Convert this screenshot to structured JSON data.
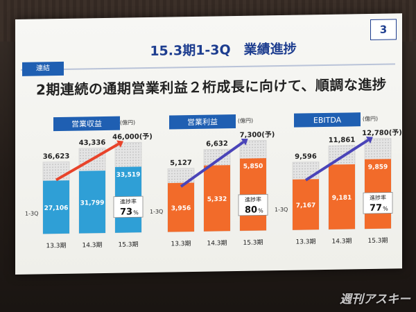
{
  "slide": {
    "page_number": "3",
    "badge": "連結",
    "title": "15.3期1-3Q　業績進捗",
    "subtitle": "2期連続の通期営業利益２桁成長に向けて、順調な進捗"
  },
  "watermark": "週刊アスキー",
  "colors": {
    "slide_bg": "#f4f4f0",
    "header_blue": "#1f5fb2",
    "title_navy": "#1d3d8f",
    "blue_bar": "#2f9fd6",
    "orange_bar": "#f26b2a",
    "forecast_fill": "#dcdcdc",
    "arrow_red": "#e8432a",
    "arrow_purple": "#4a44b8"
  },
  "chart_data": [
    {
      "type": "bar",
      "title": "営業収益",
      "unit": "(億円)",
      "bar_color": "#2f9fd6",
      "arrow_color": "#e8432a",
      "categories": [
        "13.3期",
        "14.3期",
        "15.3期"
      ],
      "row_label": "1-3Q",
      "series": [
        {
          "name": "1-3Q",
          "values": [
            27106,
            31799,
            33519
          ],
          "labels": [
            "27,106",
            "31,799",
            "33,519"
          ]
        },
        {
          "name": "通期",
          "values": [
            36623,
            43336,
            46000
          ],
          "labels": [
            "36,623",
            "43,336",
            "46,000"
          ]
        }
      ],
      "forecast_suffix": "(予)",
      "progress": {
        "label": "進捗率",
        "value": "73",
        "unit": "%"
      }
    },
    {
      "type": "bar",
      "title": "営業利益",
      "unit": "(億円)",
      "bar_color": "#f26b2a",
      "arrow_color": "#4a44b8",
      "categories": [
        "13.3期",
        "14.3期",
        "15.3期"
      ],
      "row_label": "1-3Q",
      "series": [
        {
          "name": "1-3Q",
          "values": [
            3956,
            5332,
            5850
          ],
          "labels": [
            "3,956",
            "5,332",
            "5,850"
          ]
        },
        {
          "name": "通期",
          "values": [
            5127,
            6632,
            7300
          ],
          "labels": [
            "5,127",
            "6,632",
            "7,300"
          ]
        }
      ],
      "forecast_suffix": "(予)",
      "progress": {
        "label": "進捗率",
        "value": "80",
        "unit": "%"
      }
    },
    {
      "type": "bar",
      "title": "EBITDA",
      "unit": "(億円)",
      "bar_color": "#f26b2a",
      "arrow_color": "#4a44b8",
      "categories": [
        "13.3期",
        "14.3期",
        "15.3期"
      ],
      "row_label": "1-3Q",
      "series": [
        {
          "name": "1-3Q",
          "values": [
            7167,
            9181,
            9859
          ],
          "labels": [
            "7,167",
            "9,181",
            "9,859"
          ]
        },
        {
          "name": "通期",
          "values": [
            9596,
            11861,
            12780
          ],
          "labels": [
            "9,596",
            "11,861",
            "12,780"
          ]
        }
      ],
      "forecast_suffix": "(予)",
      "progress": {
        "label": "進捗率",
        "value": "77",
        "unit": "%"
      }
    }
  ]
}
